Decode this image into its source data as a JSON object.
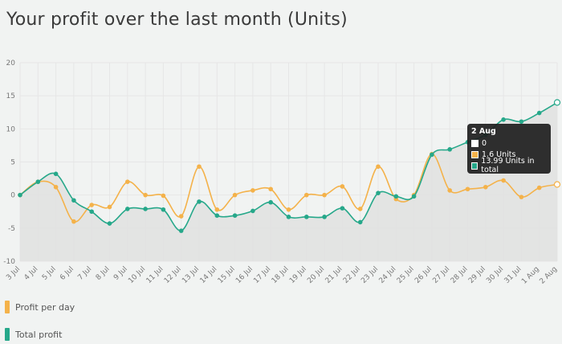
{
  "title": "Your profit over the last month (Units)",
  "colors": {
    "daily": "#f4b24a",
    "total": "#26a88a",
    "area": "#e0e0e0",
    "grid": "#e6e6e6"
  },
  "legend": [
    {
      "label": "Profit per day",
      "color": "#f4b24a"
    },
    {
      "label": "Total profit",
      "color": "#26a88a"
    }
  ],
  "tooltip": {
    "title": "2 Aug",
    "rows": [
      {
        "text": "0",
        "color": "#ffffff"
      },
      {
        "text": "1.6 Units",
        "color": "#f4b24a"
      },
      {
        "text": "13.99 Units in total",
        "color": "#26a88a"
      }
    ]
  },
  "chart_data": {
    "type": "line",
    "title": "Your profit over the last month (Units)",
    "ylim": [
      -10,
      20
    ],
    "yticks": [
      -10,
      -5,
      0,
      5,
      10,
      15,
      20
    ],
    "grid": true,
    "legend_position": "bottom-left",
    "categories": [
      "3 Jul",
      "4 Jul",
      "5 Jul",
      "6 Jul",
      "7 Jul",
      "8 Jul",
      "9 Jul",
      "10 Jul",
      "11 Jul",
      "12 Jul",
      "13 Jul",
      "14 Jul",
      "15 Jul",
      "16 Jul",
      "17 Jul",
      "18 Jul",
      "19 Jul",
      "20 Jul",
      "21 Jul",
      "22 Jul",
      "23 Jul",
      "24 Jul",
      "25 Jul",
      "26 Jul",
      "27 Jul",
      "28 Jul",
      "29 Jul",
      "30 Jul",
      "31 Jul",
      "1 Aug",
      "2 Aug"
    ],
    "series": [
      {
        "name": "Profit per day",
        "values": [
          0,
          2,
          1.2,
          -4,
          -1.5,
          -1.8,
          2,
          0,
          -0.1,
          -3.2,
          4.3,
          -2.2,
          0,
          0.7,
          0.9,
          -2.2,
          0,
          0,
          1.3,
          -2.1,
          4.3,
          -0.6,
          0,
          6.2,
          0.7,
          0.9,
          1.2,
          2.2,
          -0.3,
          1.1,
          1.6
        ]
      },
      {
        "name": "Total profit",
        "values": [
          0,
          2,
          3.2,
          -0.8,
          -2.5,
          -4.3,
          -2.1,
          -2.1,
          -2.2,
          -5.4,
          -1,
          -3.1,
          -3.1,
          -2.4,
          -1.1,
          -3.3,
          -3.3,
          -3.3,
          -2,
          -4.1,
          0.3,
          -0.2,
          -0.2,
          6.1,
          6.9,
          8,
          9.1,
          11.4,
          11.1,
          12.4,
          13.99
        ]
      }
    ]
  }
}
